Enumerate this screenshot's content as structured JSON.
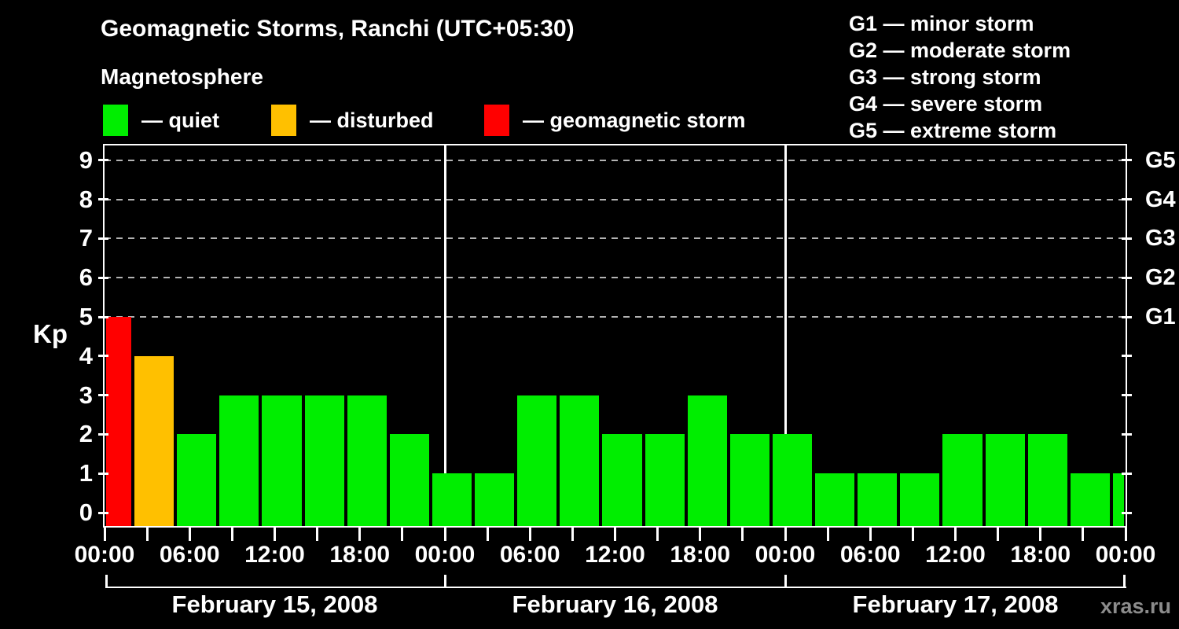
{
  "header": {
    "title": "Geomagnetic Storms, Ranchi (UTC+05:30)",
    "subtitle": "Magnetosphere",
    "watermark": "xras.ru"
  },
  "legend": {
    "items": [
      {
        "label": "— quiet",
        "status": "quiet"
      },
      {
        "label": "— disturbed",
        "status": "disturbed"
      },
      {
        "label": "— geomagnetic storm",
        "status": "storm"
      }
    ]
  },
  "g_scale_legend": [
    "G1 — minor storm",
    "G2 — moderate storm",
    "G3 — strong storm",
    "G4 — severe storm",
    "G5 — extreme storm"
  ],
  "colors": {
    "quiet": "#00ee00",
    "disturbed": "#ffc000",
    "storm": "#ff0000",
    "grid": "#b3b3b3",
    "axis": "#ffffff",
    "watermark": "#8c8c8c",
    "background": "#000000"
  },
  "y_axis": {
    "label": "Kp",
    "ticks": [
      0,
      1,
      2,
      3,
      4,
      5,
      6,
      7,
      8,
      9
    ]
  },
  "right_axis": {
    "labels": [
      {
        "kp": 5,
        "text": "G1"
      },
      {
        "kp": 6,
        "text": "G2"
      },
      {
        "kp": 7,
        "text": "G3"
      },
      {
        "kp": 8,
        "text": "G4"
      },
      {
        "kp": 9,
        "text": "G5"
      }
    ]
  },
  "x_axis": {
    "tick_every_h": 3,
    "label_every_h": 6,
    "labels": [
      "00:00",
      "06:00",
      "12:00",
      "18:00",
      "00:00",
      "06:00",
      "12:00",
      "18:00",
      "00:00",
      "06:00",
      "12:00",
      "18:00",
      "00:00"
    ]
  },
  "days": [
    {
      "label": "February 15, 2008",
      "start_h": 0,
      "end_h": 24
    },
    {
      "label": "February 16, 2008",
      "start_h": 24,
      "end_h": 48
    },
    {
      "label": "February 17, 2008",
      "start_h": 48,
      "end_h": 72
    }
  ],
  "chart_data": {
    "type": "bar",
    "title": "Geomagnetic Storms, Ranchi (UTC+05:30)",
    "ylabel": "Kp",
    "ylim": [
      0,
      9.4
    ],
    "x_range_hours": [
      0,
      72
    ],
    "x_epoch": "2008-02-15 00:00 local time (UTC+05:30)",
    "grid": "dashed horizontal at storm levels",
    "gridlines_at_kp": [
      5,
      6,
      7,
      8,
      9
    ],
    "legend_position": "top-left",
    "bars": [
      {
        "start_h": 0,
        "end_h": 2,
        "kp": 5,
        "status": "storm"
      },
      {
        "start_h": 2,
        "end_h": 5,
        "kp": 4,
        "status": "disturbed"
      },
      {
        "start_h": 5,
        "end_h": 8,
        "kp": 2,
        "status": "quiet"
      },
      {
        "start_h": 8,
        "end_h": 11,
        "kp": 3,
        "status": "quiet"
      },
      {
        "start_h": 11,
        "end_h": 14,
        "kp": 3,
        "status": "quiet"
      },
      {
        "start_h": 14,
        "end_h": 17,
        "kp": 3,
        "status": "quiet"
      },
      {
        "start_h": 17,
        "end_h": 20,
        "kp": 3,
        "status": "quiet"
      },
      {
        "start_h": 20,
        "end_h": 23,
        "kp": 2,
        "status": "quiet"
      },
      {
        "start_h": 23,
        "end_h": 26,
        "kp": 1,
        "status": "quiet"
      },
      {
        "start_h": 26,
        "end_h": 29,
        "kp": 1,
        "status": "quiet"
      },
      {
        "start_h": 29,
        "end_h": 32,
        "kp": 3,
        "status": "quiet"
      },
      {
        "start_h": 32,
        "end_h": 35,
        "kp": 3,
        "status": "quiet"
      },
      {
        "start_h": 35,
        "end_h": 38,
        "kp": 2,
        "status": "quiet"
      },
      {
        "start_h": 38,
        "end_h": 41,
        "kp": 2,
        "status": "quiet"
      },
      {
        "start_h": 41,
        "end_h": 44,
        "kp": 3,
        "status": "quiet"
      },
      {
        "start_h": 44,
        "end_h": 47,
        "kp": 2,
        "status": "quiet"
      },
      {
        "start_h": 47,
        "end_h": 50,
        "kp": 2,
        "status": "quiet"
      },
      {
        "start_h": 50,
        "end_h": 53,
        "kp": 1,
        "status": "quiet"
      },
      {
        "start_h": 53,
        "end_h": 56,
        "kp": 1,
        "status": "quiet"
      },
      {
        "start_h": 56,
        "end_h": 59,
        "kp": 1,
        "status": "quiet"
      },
      {
        "start_h": 59,
        "end_h": 62,
        "kp": 2,
        "status": "quiet"
      },
      {
        "start_h": 62,
        "end_h": 65,
        "kp": 2,
        "status": "quiet"
      },
      {
        "start_h": 65,
        "end_h": 68,
        "kp": 2,
        "status": "quiet"
      },
      {
        "start_h": 68,
        "end_h": 71,
        "kp": 1,
        "status": "quiet"
      },
      {
        "start_h": 71,
        "end_h": 72,
        "kp": 1,
        "status": "quiet"
      }
    ]
  }
}
